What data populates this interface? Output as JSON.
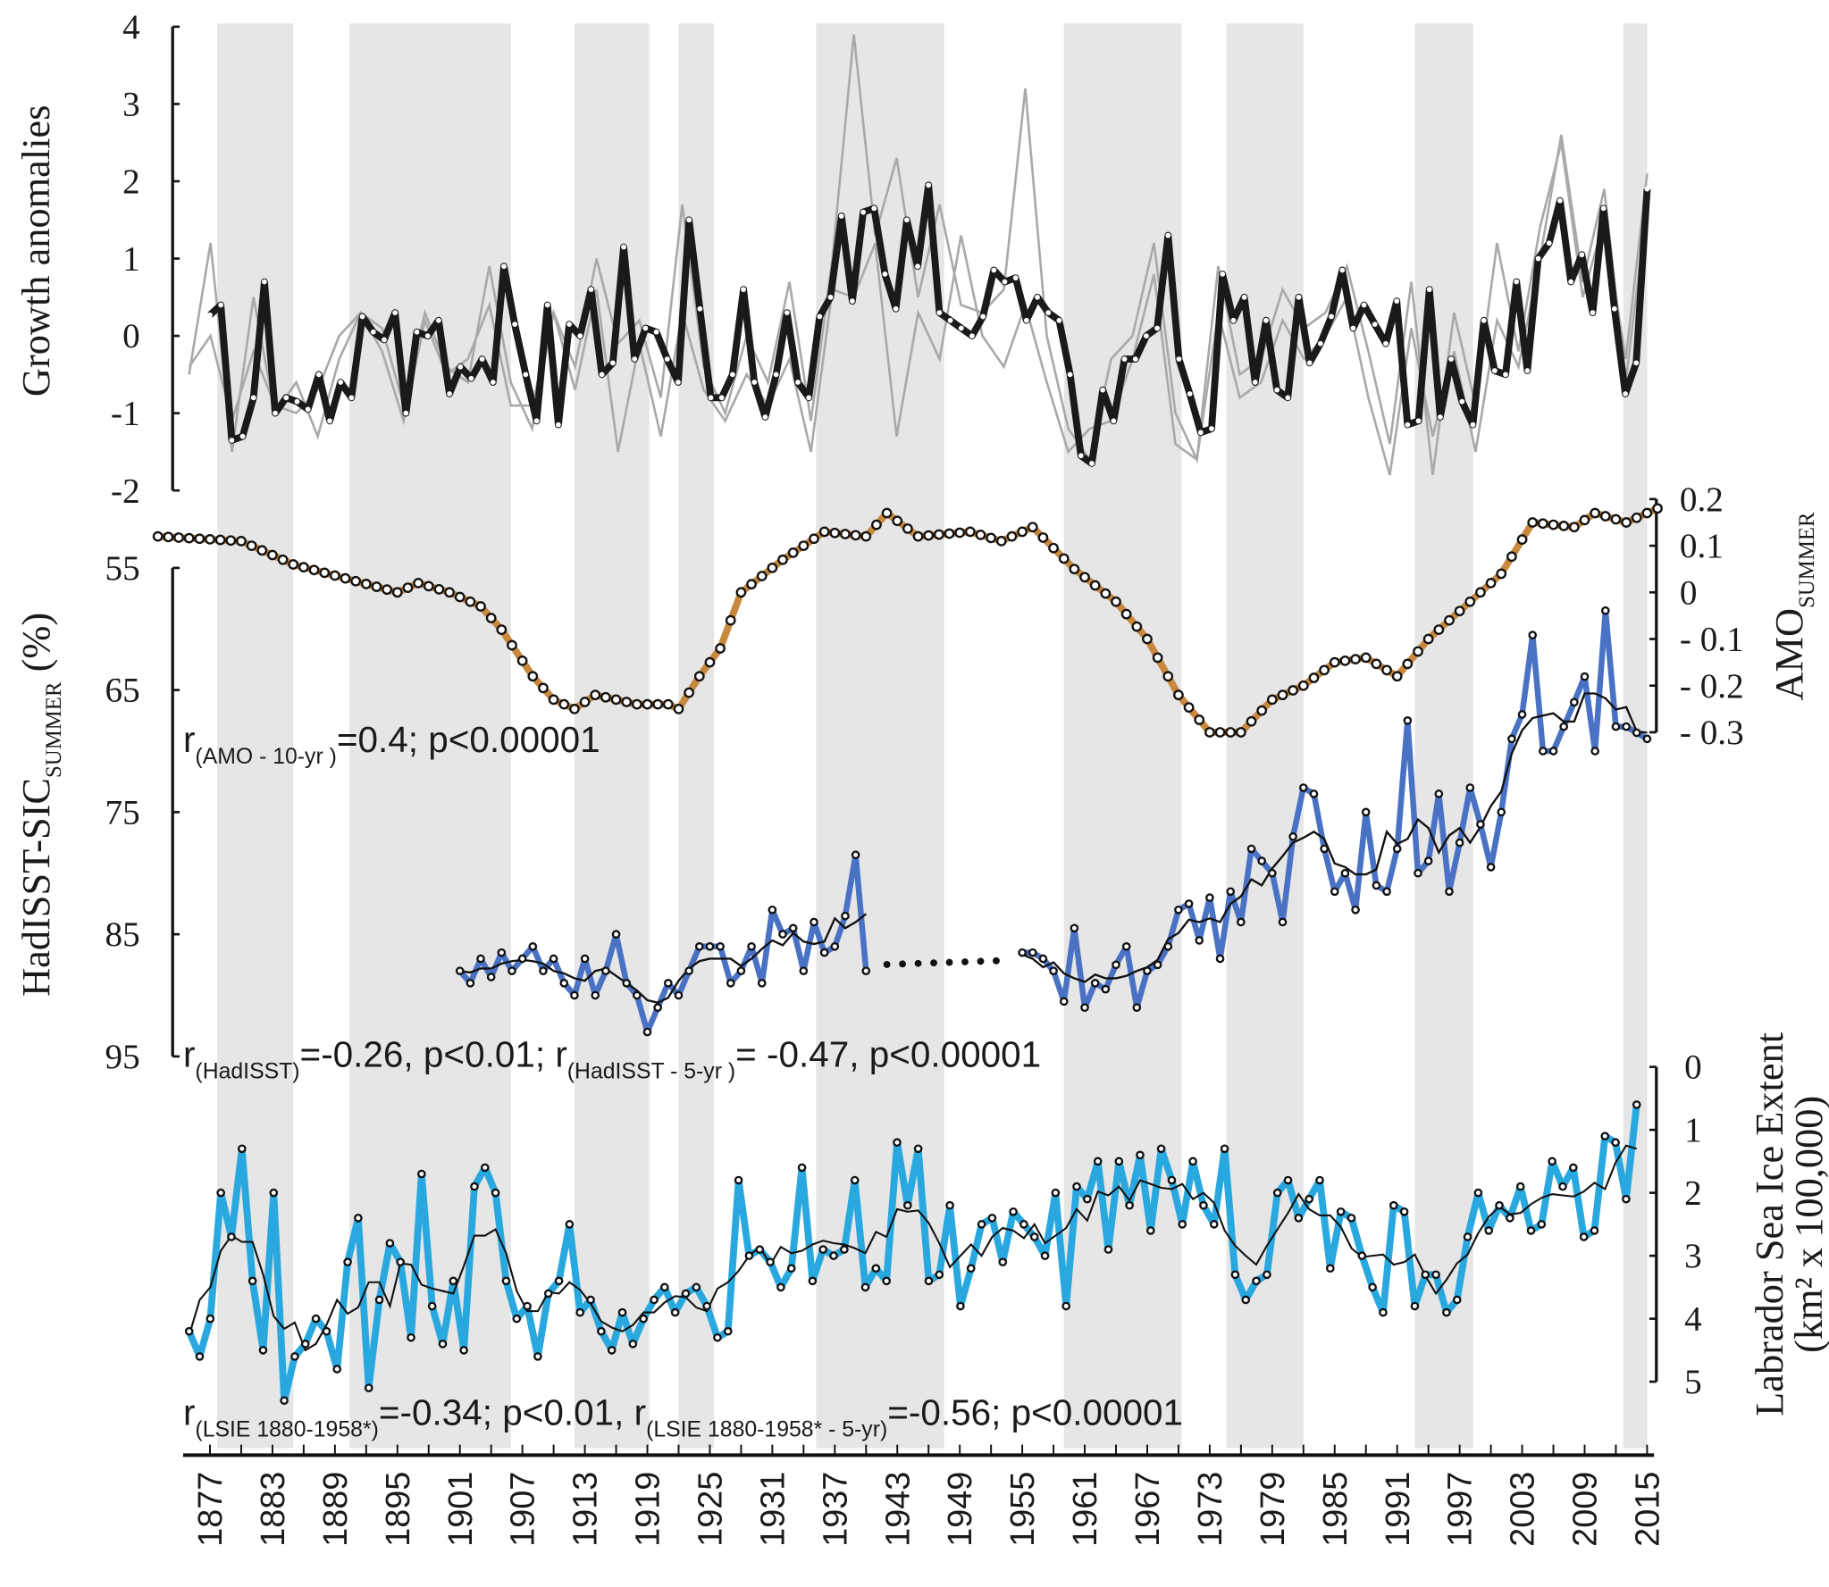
{
  "chart_data": {
    "type": "line",
    "x_axis": {
      "range": [
        1877,
        2015
      ],
      "tick_labels": [
        "1877",
        "1883",
        "1889",
        "1895",
        "1901",
        "1907",
        "1913",
        "1919",
        "1925",
        "1931",
        "1937",
        "1943",
        "1949",
        "1955",
        "1961",
        "1967",
        "1973",
        "1979",
        "1985",
        "1991",
        "1997",
        "2003",
        "2009",
        "2015"
      ]
    },
    "shaded_periods": [
      [
        1877.7,
        1885
      ],
      [
        1890.4,
        1905.9
      ],
      [
        1912,
        1919.2
      ],
      [
        1922,
        1925.4
      ],
      [
        1935.2,
        1947.5
      ],
      [
        1959,
        1970.3
      ],
      [
        1974.6,
        1982
      ],
      [
        1992.7,
        1998.3
      ],
      [
        2012.7,
        2015
      ]
    ],
    "panels": [
      {
        "name": "growth",
        "ylabel": "Growth anomalies",
        "ylim": [
          -2,
          4
        ],
        "tick_labels": [
          "4",
          "3",
          "2",
          "1",
          "0",
          "-1",
          "-2"
        ],
        "tick_values": [
          4,
          3,
          2,
          1,
          0,
          -1,
          -2
        ],
        "series": [
          {
            "name": "gray-1",
            "color": "#a9a9a9",
            "x_range": [
              1875,
              2015
            ],
            "values": [
              -0.5,
              1.2,
              -1.5,
              0.5,
              -1.0,
              -0.6,
              -1.3,
              -0.3,
              0.3,
              0.1,
              -0.9,
              0.3,
              -0.4,
              -0.6,
              0.9,
              -0.6,
              -1.2,
              0.3,
              -0.4,
              1.0,
              -0.1,
              0.2,
              -0.8,
              1.7,
              -0.4,
              -1.0,
              0.0,
              -0.6,
              0.7,
              -1.1,
              1.0,
              3.9,
              1.3,
              2.3,
              0.5,
              1.7,
              0.4,
              0.3,
              0.6,
              3.2,
              0.0,
              -1.2,
              -1.6,
              -0.3,
              0.0,
              1.2,
              -1.0,
              -1.6,
              0.9,
              -0.5,
              -0.3,
              0.6,
              0.1,
              0.3,
              0.9,
              -0.2,
              -1.4,
              0.7,
              -1.8,
              0.3,
              -0.9,
              1.2,
              -0.2,
              1.4,
              2.5,
              0.5,
              1.5,
              -0.3,
              2.1
            ]
          },
          {
            "name": "gray-2",
            "color": "#a9a9a9",
            "x_range": [
              1875,
              2015
            ],
            "values": [
              -0.4,
              0.0,
              -1.1,
              -0.2,
              -0.9,
              -1.0,
              -0.7,
              0.0,
              0.3,
              -0.2,
              -1.1,
              0.2,
              -0.5,
              -0.3,
              0.4,
              -0.9,
              -0.9,
              0.3,
              -0.7,
              0.6,
              -1.5,
              -0.1,
              -1.3,
              0.3,
              -0.7,
              -1.1,
              -0.5,
              -0.9,
              -0.3,
              -1.5,
              0.6,
              0.5,
              1.2,
              -1.3,
              0.3,
              -0.3,
              1.3,
              0.0,
              -0.4,
              0.4,
              -0.6,
              -1.5,
              -1.2,
              -1.1,
              -0.3,
              0.8,
              -1.4,
              -1.6,
              0.3,
              -0.8,
              -0.6,
              0.2,
              -0.3,
              0.0,
              0.5,
              -0.8,
              -1.8,
              0.1,
              -1.3,
              -0.2,
              -1.5,
              0.2,
              -0.4,
              1.0,
              2.6,
              0.7,
              1.9,
              -0.6,
              1.7
            ]
          },
          {
            "name": "mean-chronology",
            "color": "#1a1a1a",
            "x_range": [
              1877,
              2015
            ],
            "values": [
              0.27,
              0.4,
              -1.35,
              -1.3,
              -0.8,
              0.7,
              -1.0,
              -0.8,
              -0.85,
              -0.95,
              -0.5,
              -1.1,
              -0.6,
              -0.8,
              0.25,
              0.05,
              -0.05,
              0.3,
              -1.0,
              0.05,
              0.0,
              0.2,
              -0.75,
              -0.4,
              -0.55,
              -0.3,
              -0.6,
              0.9,
              0.15,
              -0.5,
              -1.1,
              0.4,
              -1.15,
              0.15,
              0.0,
              0.6,
              -0.5,
              -0.35,
              1.15,
              -0.3,
              0.1,
              0.05,
              -0.3,
              -0.6,
              1.5,
              0.35,
              -0.8,
              -0.8,
              -0.5,
              0.6,
              -0.6,
              -1.05,
              -0.5,
              0.3,
              -0.6,
              -0.8,
              0.25,
              0.5,
              1.55,
              0.45,
              1.6,
              1.65,
              0.8,
              0.35,
              1.5,
              0.9,
              1.95,
              0.3,
              0.2,
              0.1,
              0.0,
              0.25,
              0.85,
              0.7,
              0.75,
              0.2,
              0.5,
              0.3,
              0.2,
              -0.5,
              -1.55,
              -1.65,
              -0.7,
              -1.1,
              -0.3,
              -0.3,
              0.0,
              0.1,
              1.3,
              -0.3,
              -0.75,
              -1.25,
              -1.2,
              0.8,
              0.2,
              0.5,
              -0.6,
              0.2,
              -0.7,
              -0.8,
              0.5,
              -0.35,
              -0.1,
              0.25,
              0.85,
              0.1,
              0.4,
              0.15,
              -0.1,
              0.45,
              -1.15,
              -1.1,
              0.6,
              -1.05,
              -0.3,
              -0.85,
              -1.15,
              0.2,
              -0.45,
              -0.5,
              0.7,
              -0.45,
              1.0,
              1.2,
              1.75,
              0.7,
              1.05,
              0.3,
              1.65,
              0.35,
              -0.75,
              -0.35,
              1.9
            ]
          }
        ]
      },
      {
        "name": "amo",
        "ylabel": "AMO",
        "ylabel_sub": "SUMMER",
        "ylim": [
          -0.3,
          0.2
        ],
        "tick_labels": [
          "0.2",
          "0.1",
          "0",
          "- 0.1",
          "- 0.2",
          "- 0.3"
        ],
        "tick_values": [
          0.2,
          0.1,
          0,
          -0.1,
          -0.2,
          -0.3
        ],
        "series": [
          {
            "name": "AMO 10-yr",
            "color": "#c8893f",
            "x": [
              1872,
              1880,
              1885,
              1890,
              1895,
              1897,
              1900,
              1903,
              1905,
              1908,
              1910,
              1912,
              1914,
              1918,
              1921,
              1922,
              1924,
              1926,
              1928,
              1932,
              1936,
              1940,
              1942,
              1945,
              1950,
              1953,
              1956,
              1960,
              1964,
              1967,
              1970,
              1973,
              1976,
              1979,
              1982,
              1985,
              1988,
              1991,
              1994,
              1998,
              2001,
              2004,
              2008,
              2010,
              2013,
              2016
            ],
            "y": [
              0.12,
              0.11,
              0.06,
              0.03,
              0.0,
              0.02,
              0.0,
              -0.03,
              -0.08,
              -0.18,
              -0.23,
              -0.25,
              -0.22,
              -0.24,
              -0.24,
              -0.25,
              -0.18,
              -0.12,
              0.0,
              0.07,
              0.13,
              0.12,
              0.17,
              0.12,
              0.13,
              0.11,
              0.14,
              0.05,
              -0.02,
              -0.1,
              -0.22,
              -0.3,
              -0.3,
              -0.23,
              -0.2,
              -0.15,
              -0.14,
              -0.18,
              -0.1,
              -0.02,
              0.04,
              0.15,
              0.14,
              0.17,
              0.15,
              0.18
            ]
          }
        ],
        "annotation": {
          "r": "r",
          "sub": "(AMO - 10-yr )",
          "text": "=0.4; p<0.00001"
        }
      },
      {
        "name": "hadisst",
        "ylabel": "HadISST-SIC",
        "ylabel_sub": "SUMMER",
        "ylabel_unit": " (%)",
        "ylim": [
          95,
          55
        ],
        "tick_labels": [
          "55",
          "65",
          "75",
          "85",
          "95"
        ],
        "tick_values": [
          55,
          65,
          75,
          85,
          95
        ],
        "series": [
          {
            "name": "HadISST 1901-1940",
            "color": "#4a72c4",
            "x_range": [
              1901,
              1940
            ],
            "values": [
              88,
              89,
              87,
              88.5,
              86.5,
              88,
              87,
              86,
              88,
              87,
              89,
              90,
              87,
              90,
              88,
              85,
              89,
              90,
              93,
              91,
              89,
              90,
              88,
              86,
              86,
              86,
              89,
              88,
              86,
              89,
              83,
              85,
              84.5,
              88,
              84,
              86.5,
              86,
              83.5,
              78.5,
              88
            ]
          },
          {
            "name": "HadISST 1955-2015",
            "color": "#4a72c4",
            "x_range": [
              1955,
              2015
            ],
            "values": [
              86.5,
              86.5,
              87,
              88,
              90.5,
              84.5,
              91,
              89,
              89.5,
              87.5,
              86,
              91,
              88,
              87.5,
              86,
              83,
              82.5,
              85.5,
              82,
              87,
              81.5,
              84,
              78,
              79,
              80,
              84,
              77,
              73,
              73.5,
              78,
              81.5,
              80,
              83,
              75,
              81,
              81.5,
              78,
              67.5,
              80,
              79,
              73.5,
              81.5,
              77.5,
              73,
              76,
              79.5,
              75,
              69,
              67,
              60.5,
              70,
              70,
              68,
              66,
              63.9,
              70,
              58.5,
              68,
              68,
              68.5,
              69
            ]
          }
        ],
        "gap": {
          "x": [
            1941,
            1954
          ],
          "value": 87.5
        },
        "annotation": {
          "r1": "r",
          "sub1": "(HadISST)",
          "text1": "=-0.26, p<0.01; r",
          "sub2": "(HadISST - 5-yr )",
          "text2": "= -0.47, p<0.00001"
        }
      },
      {
        "name": "lsie",
        "ylabel": "Labrador Sea Ice Extent",
        "ylabel2": "(km² x 100,000)",
        "ylim": [
          5,
          0
        ],
        "tick_labels": [
          "0",
          "1",
          "2",
          "3",
          "4",
          "5"
        ],
        "tick_values": [
          0,
          1,
          2,
          3,
          4,
          5
        ],
        "series": [
          {
            "name": "LSIE",
            "color": "#29a8df",
            "x_range": [
              1875,
              2014
            ],
            "values": [
              4.2,
              4.6,
              4.0,
              2.0,
              2.7,
              1.3,
              3.4,
              4.5,
              2.0,
              5.3,
              4.6,
              4.4,
              4.0,
              4.2,
              4.8,
              3.1,
              2.4,
              5.1,
              3.7,
              2.8,
              3.1,
              4.3,
              1.7,
              3.8,
              4.4,
              3.4,
              4.5,
              1.9,
              1.6,
              2.0,
              3.4,
              4.0,
              3.8,
              4.6,
              3.6,
              3.4,
              2.5,
              3.9,
              3.7,
              4.2,
              4.5,
              3.9,
              4.4,
              4.0,
              3.7,
              3.5,
              3.9,
              3.6,
              3.5,
              3.8,
              4.3,
              4.2,
              1.8,
              3.0,
              2.9,
              3.1,
              3.5,
              3.2,
              1.6,
              3.4,
              2.9,
              3.0,
              2.9,
              1.8,
              3.5,
              3.2,
              3.4,
              1.2,
              2.2,
              1.3,
              3.4,
              3.3,
              2.2,
              3.8,
              3.2,
              2.5,
              2.4,
              3.1,
              2.3,
              2.5,
              2.7,
              3.0,
              2.0,
              3.8,
              1.9,
              2.1,
              1.5,
              2.9,
              1.5,
              2.2,
              1.4,
              2.6,
              1.3,
              1.8,
              2.5,
              1.5,
              2.2,
              2.5,
              1.3,
              3.3,
              3.7,
              3.4,
              3.3,
              2.0,
              1.8,
              2.4,
              2.1,
              1.8,
              3.2,
              2.3,
              2.4,
              3.0,
              3.5,
              3.9,
              2.2,
              2.3,
              3.8,
              3.3,
              3.3,
              3.9,
              3.7,
              2.7,
              2.0,
              2.6,
              2.2,
              2.4,
              1.9,
              2.6,
              2.5,
              1.5,
              1.9,
              1.6,
              2.7,
              2.6,
              1.1,
              1.2,
              2.1,
              0.6
            ]
          }
        ],
        "annotation": {
          "r1": "r",
          "sub1": "(LSIE 1880-1958*)",
          "text1": "=-0.34; p<0.01, r",
          "sub2": "(LSIE 1880-1958* - 5-yr)",
          "text2": "=-0.56; p<0.00001"
        }
      }
    ]
  }
}
